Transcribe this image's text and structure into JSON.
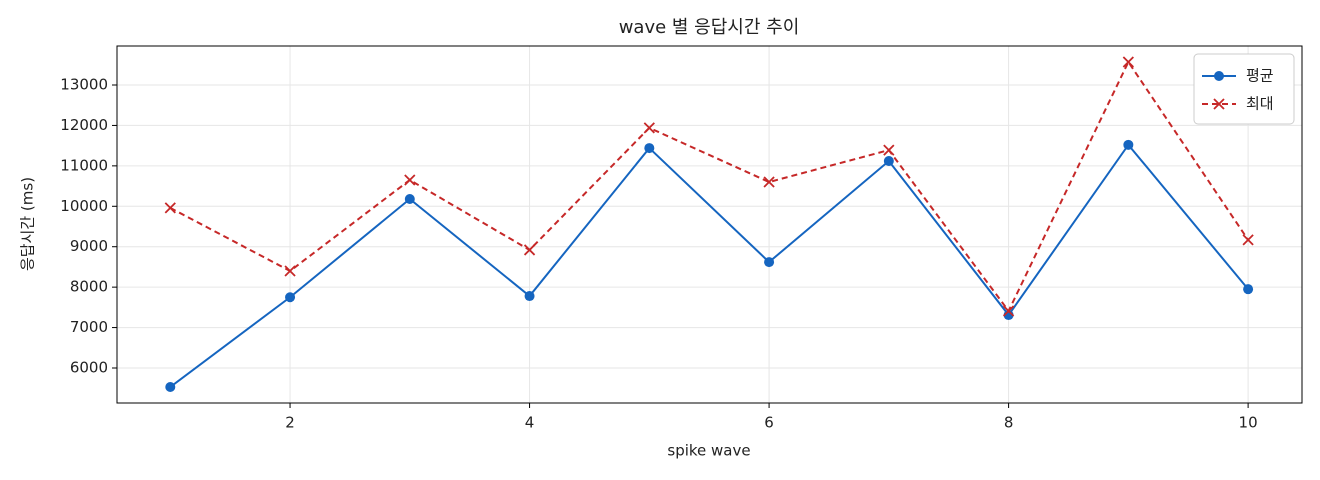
{
  "chart_data": {
    "type": "line",
    "title": "wave 별 응답시간 추이",
    "xlabel": "spike wave",
    "ylabel": "응답시간 (ms)",
    "x": [
      1,
      2,
      3,
      4,
      5,
      6,
      7,
      8,
      9,
      10
    ],
    "series": [
      {
        "name": "평균",
        "color": "#1565c0",
        "marker": "o",
        "linestyle": "solid",
        "values": [
          5530,
          7750,
          10180,
          7780,
          11440,
          8620,
          11120,
          7310,
          11520,
          7950
        ]
      },
      {
        "name": "최대",
        "color": "#c62828",
        "marker": "x",
        "linestyle": "dashed",
        "values": [
          9960,
          8400,
          10650,
          8920,
          11940,
          10600,
          11390,
          7410,
          13570,
          9170
        ]
      }
    ],
    "xlim": [
      0.555,
      10.45
    ],
    "xticks": [
      2,
      4,
      6,
      8,
      10
    ],
    "ylim": [
      5134,
      13965
    ],
    "yticks": [
      6000,
      7000,
      8000,
      9000,
      10000,
      11000,
      12000,
      13000
    ],
    "grid": true,
    "legend": "upper right"
  }
}
